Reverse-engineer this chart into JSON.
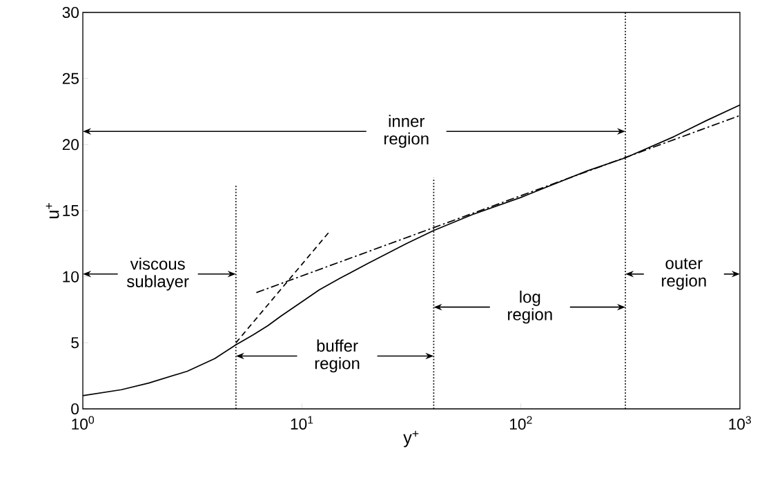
{
  "chart_data": {
    "type": "line",
    "xlabel": "y$^{+}$",
    "ylabel": "u$^{+}$",
    "log": "x",
    "xlim": [
      1,
      1000
    ],
    "xticks": [
      {
        "value": 1,
        "label": "10$^{0}$"
      },
      {
        "value": 10,
        "label": "10$^{1}$"
      },
      {
        "value": 100,
        "label": "10$^{2}$"
      },
      {
        "value": 1000,
        "label": "10$^{3}$"
      }
    ],
    "ylim": [
      0,
      30
    ],
    "yticks": [
      0,
      5,
      10,
      15,
      20,
      25,
      30
    ],
    "grid": false,
    "marker": "none",
    "series": [
      {
        "color": "#000000",
        "line_style": "solid",
        "x": [
          1,
          1.5,
          2,
          3,
          4,
          5,
          6,
          7,
          8,
          10,
          12,
          15,
          20,
          30,
          40,
          60,
          100,
          200,
          300,
          500,
          700,
          1000
        ],
        "values": [
          1.0,
          1.45,
          1.95,
          2.85,
          3.8,
          4.85,
          5.6,
          6.3,
          7.0,
          8.1,
          9.0,
          9.9,
          11.0,
          12.5,
          13.5,
          14.7,
          16.0,
          18.0,
          19.0,
          20.6,
          21.8,
          23.0
        ]
      },
      {
        "color": "#000000",
        "line_style": "dashed",
        "x": [
          5,
          13.5
        ],
        "values": [
          5,
          13.5
        ]
      },
      {
        "color": "#000000",
        "line_style": "dashdot",
        "x": [
          6.2,
          1000
        ],
        "values": [
          8.8,
          22.2
        ]
      },
      {
        "color": "#000000",
        "line_style": "dotted",
        "x": [
          5,
          5
        ],
        "values": [
          0,
          17
        ]
      },
      {
        "color": "#000000",
        "line_style": "dotted",
        "x": [
          40,
          40
        ],
        "values": [
          0,
          17.5
        ]
      },
      {
        "color": "#000000",
        "line_style": "dotted",
        "x": [
          300,
          300
        ],
        "values": [
          0,
          30
        ]
      }
    ],
    "annotations": [
      "inner region",
      "viscous sublayer",
      "buffer region",
      "log region",
      "outer region"
    ]
  }
}
